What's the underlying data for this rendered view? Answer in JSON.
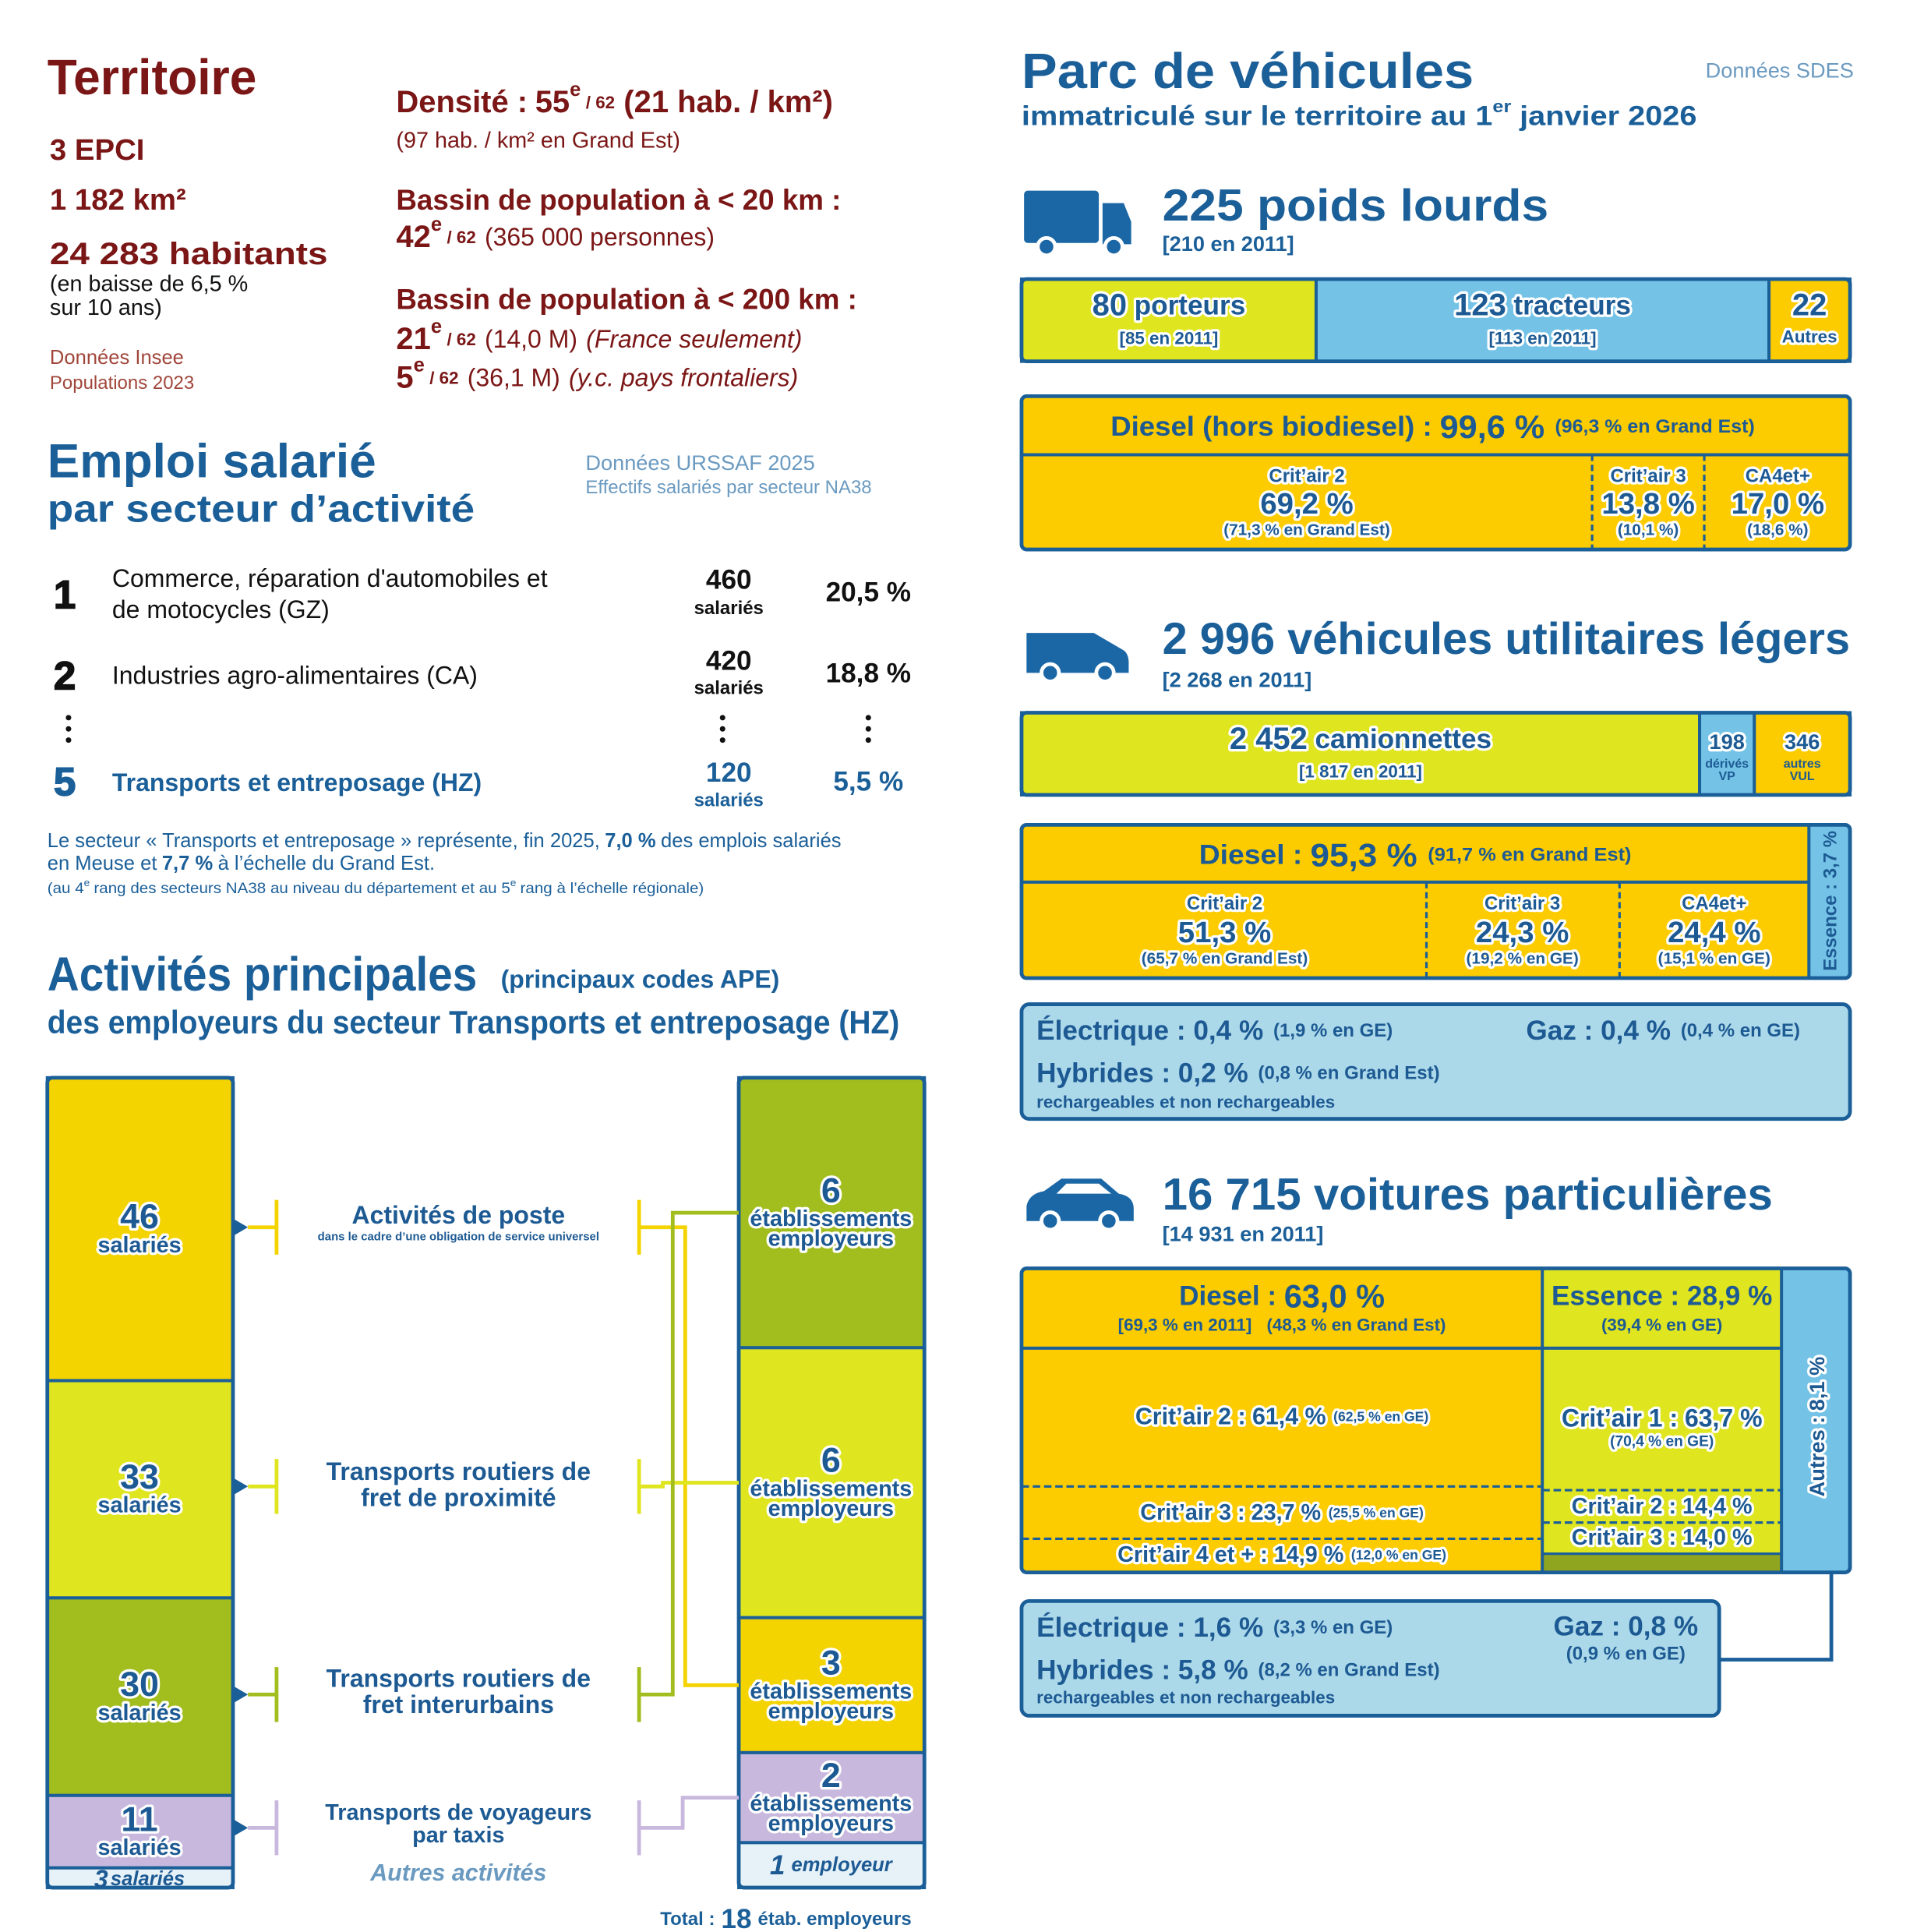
{
  "territoire": {
    "title": "Territoire",
    "epci": "3 EPCI",
    "surface": "1 182 km²",
    "habitants": "24 283 habitants",
    "evolution": [
      "(en baisse de 6,5 %",
      "sur 10 ans)"
    ],
    "source": [
      "Données Insee",
      "Populations 2023"
    ],
    "densite": {
      "label": "Densité :",
      "rank": "55",
      "suffix": "e",
      "of": "/ 62",
      "value": "(21 hab. / km²)",
      "note": "(97 hab. / km² en Grand Est)"
    },
    "bassins": [
      {
        "label": "Bassin de population à < 20 km :",
        "rows": [
          {
            "rank": "42",
            "suffix": "e",
            "of": "/ 62",
            "value": "(365 000 personnes)"
          }
        ]
      },
      {
        "label": "Bassin de population à < 200 km :",
        "rows": [
          {
            "rank": "21",
            "suffix": "e",
            "of": "/ 62",
            "value": "(14,0 M)",
            "note": "(France seulement)"
          },
          {
            "rank": "5",
            "suffix": "e",
            "of": "/ 62",
            "value": "(36,1 M)",
            "note": "(y.c. pays frontaliers)"
          }
        ]
      }
    ]
  },
  "emploi": {
    "title": "Emploi salarié",
    "subtitle": "par secteur d’activité",
    "source": [
      "Données URSSAF 2025",
      "Effectifs salariés par secteur NA38"
    ],
    "rows": [
      {
        "rank": "1",
        "label": [
          "Commerce, réparation d'automobiles et",
          "de motocycles (GZ)"
        ],
        "count": "460",
        "unit": "salariés",
        "share": "20,5 %"
      },
      {
        "rank": "2",
        "label": [
          "Industries agro-alimentaires (CA)"
        ],
        "count": "420",
        "unit": "salariés",
        "share": "18,8 %"
      },
      {
        "rank": "5",
        "label": [
          "Transports et entreposage (HZ)"
        ],
        "count": "120",
        "unit": "salariés",
        "share": "5,5 %"
      }
    ],
    "note": [
      [
        "Le secteur « Transports et entreposage » représente, fin 2025,",
        "7,0 %",
        "des emplois salariés"
      ],
      [
        "en Meuse et",
        "7,7 %",
        "à l’échelle du Grand Est."
      ]
    ],
    "footnote": [
      "(au 4",
      "e",
      "rang des secteurs NA38 au niveau du département et au 5",
      "e",
      "rang à l’échelle régionale)"
    ]
  },
  "activites": {
    "title": "Activités principales",
    "codes": "(principaux codes APE)",
    "subtitle": "des employeurs du secteur Transports et entreposage (HZ)",
    "salaries": {
      "values": [
        46,
        33,
        30,
        11,
        3
      ],
      "unit": "salariés"
    },
    "etablissements": {
      "values": [
        6,
        6,
        3,
        2,
        1
      ],
      "unit": [
        "établissements",
        "employeurs"
      ],
      "last_unit": "employeur"
    },
    "labels": [
      [
        "Activités de poste"
      ],
      [
        "Transports routiers de",
        "fret de proximité"
      ],
      [
        "Transports routiers de",
        "fret interurbains"
      ],
      [
        "Transports de voyageurs",
        "par taxis"
      ],
      [
        "Autres activités"
      ]
    ],
    "detail": "dans le cadre d’une obligation de service universel",
    "total": {
      "label": "Total :",
      "value": "18",
      "unit": "étab. employeurs"
    }
  },
  "parc": {
    "title": "Parc de véhicules",
    "source": "Données SDES",
    "subtitle": [
      "immatriculé sur le territoire au 1",
      "er",
      "janvier 2026"
    ],
    "poids_lourds": {
      "title": "225 poids lourds",
      "previous": "[210 en 2011]",
      "segments": [
        {
          "value": 80,
          "name": "porteurs",
          "previous": "[85 en 2011]"
        },
        {
          "value": 123,
          "name": "tracteurs",
          "previous": "[113 en 2011]"
        },
        {
          "value": 22,
          "name": "Autres"
        }
      ],
      "diesel": {
        "label": "Diesel (hors biodiesel) :",
        "value": "99,6 %",
        "ge": "(96,3 % en Grand Est)",
        "critair": [
          {
            "label": "Crit’air 2",
            "value": "69,2 %",
            "ge": "(71,3 % en Grand Est)"
          },
          {
            "label": "Crit’air 3",
            "value": "13,8 %",
            "ge": "(10,1 %)"
          },
          {
            "label": "CA4et+",
            "value": "17,0 %",
            "ge": "(18,6 %)"
          }
        ]
      }
    },
    "vul": {
      "title": "2 996 véhicules utilitaires légers",
      "previous": "[2 268 en 2011]",
      "segments": [
        {
          "value": 2452,
          "value_label": "2 452",
          "name": [
            "camionnettes"
          ],
          "previous": "[1 817 en 2011]"
        },
        {
          "value": 198,
          "name": [
            "dérivés",
            "VP"
          ]
        },
        {
          "value": 346,
          "name": [
            "autres",
            "VUL"
          ]
        }
      ],
      "diesel": {
        "label": "Diesel :",
        "value": "95,3 %",
        "ge": "(91,7 % en Grand Est)",
        "critair": [
          {
            "label": "Crit’air 2",
            "value": "51,3 %",
            "ge": "(65,7 % en Grand Est)"
          },
          {
            "label": "Crit’air 3",
            "value": "24,3 %",
            "ge": "(19,2 % en GE)"
          },
          {
            "label": "CA4et+",
            "value": "24,4 %",
            "ge": "(15,1 % en GE)"
          }
        ]
      },
      "essence": "Essence : 3,7 %",
      "autres": {
        "electrique": {
          "label": "Électrique : 0,4 %",
          "ge": "(1,9 % en GE)"
        },
        "gaz": {
          "label": "Gaz : 0,4 %",
          "ge": "(0,4 % en GE)"
        },
        "hybrides": {
          "label": "Hybrides : 0,2 %",
          "ge": "(0,8 % en Grand Est)"
        },
        "note": "rechargeables et non rechargeables"
      }
    },
    "vp": {
      "title": "16 715 voitures particulières",
      "previous": "[14 931 en 2011]",
      "diesel": {
        "label": "Diesel :",
        "value": "63,0 %",
        "previous": "[69,3 % en 2011]",
        "ge": "(48,3 % en Grand Est)",
        "critair": [
          {
            "label": "Crit’air 2 : 61,4 %",
            "ge": "(62,5 % en GE)"
          },
          {
            "label": "Crit’air 3 : 23,7 %",
            "ge": "(25,5 % en GE)"
          },
          {
            "label": "Crit’air 4 et + : 14,9 %",
            "ge": "(12,0 % en GE)"
          }
        ]
      },
      "essence": {
        "label": "Essence : 28,9 %",
        "ge": "(39,4 % en GE)",
        "critair": [
          {
            "label": "Crit’air 1 : 63,7 %",
            "ge": "(70,4 % en GE)"
          },
          {
            "label": "Crit’air 2 : 14,4 %"
          },
          {
            "label": "Crit’air 3 : 14,0 %"
          }
        ]
      },
      "autres_label": "Autres : 8,1 %",
      "autres": {
        "electrique": {
          "label": "Électrique : 1,6 %",
          "ge": "(3,3 % en GE)"
        },
        "gaz": {
          "label": "Gaz : 0,8 %",
          "ge": "(0,9 % en GE)"
        },
        "hybrides": {
          "label": "Hybrides : 5,8 %",
          "ge": "(8,2 % en Grand Est)"
        },
        "note": "rechargeables et non rechargeables"
      }
    }
  }
}
